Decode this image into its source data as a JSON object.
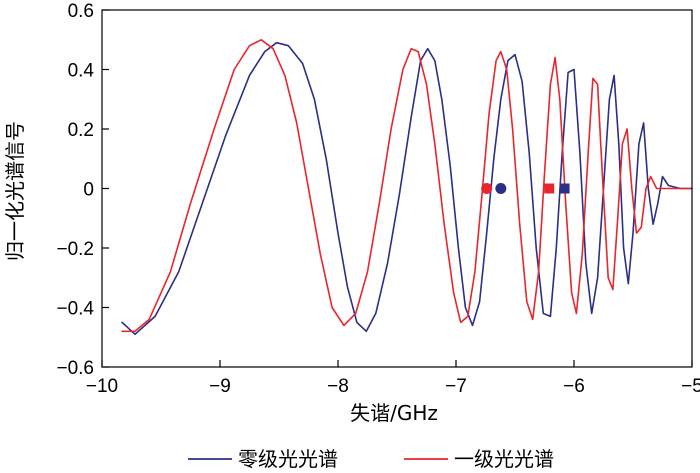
{
  "chart_data": {
    "type": "line",
    "xlabel": "失谐/GHz",
    "ylabel": "归一化光谱信号",
    "xlim": [
      -10,
      -5
    ],
    "ylim": [
      -0.6,
      0.6
    ],
    "x_ticks": [
      -10,
      -9,
      -8,
      -7,
      -6,
      -5
    ],
    "x_tick_labels": [
      "−10",
      "−9",
      "−8",
      "−7",
      "−6",
      "−5"
    ],
    "y_ticks": [
      -0.6,
      -0.4,
      -0.2,
      0,
      0.2,
      0.4,
      0.6
    ],
    "y_tick_labels": [
      "−0.6",
      "−0.4",
      "−0.2",
      "0",
      "0.2",
      "0.4",
      "0.6"
    ],
    "grid": false,
    "legend_position": "bottom",
    "series": [
      {
        "name": "零级光光谱",
        "color": "#2b2f86",
        "points": [
          [
            -9.83,
            -0.45
          ],
          [
            -9.72,
            -0.49
          ],
          [
            -9.55,
            -0.43
          ],
          [
            -9.35,
            -0.28
          ],
          [
            -9.15,
            -0.05
          ],
          [
            -8.95,
            0.18
          ],
          [
            -8.75,
            0.38
          ],
          [
            -8.62,
            0.46
          ],
          [
            -8.52,
            0.49
          ],
          [
            -8.42,
            0.48
          ],
          [
            -8.3,
            0.42
          ],
          [
            -8.2,
            0.3
          ],
          [
            -8.1,
            0.1
          ],
          [
            -8.0,
            -0.15
          ],
          [
            -7.92,
            -0.33
          ],
          [
            -7.84,
            -0.45
          ],
          [
            -7.76,
            -0.48
          ],
          [
            -7.68,
            -0.42
          ],
          [
            -7.58,
            -0.25
          ],
          [
            -7.48,
            -0.02
          ],
          [
            -7.38,
            0.24
          ],
          [
            -7.3,
            0.43
          ],
          [
            -7.24,
            0.47
          ],
          [
            -7.18,
            0.43
          ],
          [
            -7.12,
            0.3
          ],
          [
            -7.05,
            0.08
          ],
          [
            -6.98,
            -0.2
          ],
          [
            -6.92,
            -0.4
          ],
          [
            -6.86,
            -0.46
          ],
          [
            -6.8,
            -0.38
          ],
          [
            -6.74,
            -0.15
          ],
          [
            -6.68,
            0.1
          ],
          [
            -6.62,
            0.3
          ],
          [
            -6.56,
            0.43
          ],
          [
            -6.5,
            0.45
          ],
          [
            -6.44,
            0.36
          ],
          [
            -6.38,
            0.12
          ],
          [
            -6.32,
            -0.2
          ],
          [
            -6.26,
            -0.42
          ],
          [
            -6.2,
            -0.43
          ],
          [
            -6.15,
            -0.2
          ],
          [
            -6.1,
            0.12
          ],
          [
            -6.05,
            0.39
          ],
          [
            -6.0,
            0.4
          ],
          [
            -5.95,
            0.12
          ],
          [
            -5.9,
            -0.25
          ],
          [
            -5.85,
            -0.42
          ],
          [
            -5.8,
            -0.3
          ],
          [
            -5.75,
            0.0
          ],
          [
            -5.7,
            0.3
          ],
          [
            -5.66,
            0.38
          ],
          [
            -5.62,
            0.15
          ],
          [
            -5.58,
            -0.2
          ],
          [
            -5.54,
            -0.32
          ],
          [
            -5.5,
            -0.15
          ],
          [
            -5.45,
            0.15
          ],
          [
            -5.41,
            0.22
          ],
          [
            -5.37,
            0.0
          ],
          [
            -5.33,
            -0.12
          ],
          [
            -5.29,
            -0.05
          ],
          [
            -5.25,
            0.04
          ],
          [
            -5.2,
            0.01
          ],
          [
            -5.1,
            0.0
          ],
          [
            -5.0,
            0.0
          ]
        ]
      },
      {
        "name": "一级光光谱",
        "color": "#e8262d",
        "points": [
          [
            -9.83,
            -0.48
          ],
          [
            -9.72,
            -0.48
          ],
          [
            -9.6,
            -0.44
          ],
          [
            -9.42,
            -0.28
          ],
          [
            -9.25,
            -0.05
          ],
          [
            -9.05,
            0.2
          ],
          [
            -8.88,
            0.4
          ],
          [
            -8.75,
            0.48
          ],
          [
            -8.65,
            0.5
          ],
          [
            -8.55,
            0.47
          ],
          [
            -8.45,
            0.38
          ],
          [
            -8.35,
            0.22
          ],
          [
            -8.25,
            0.0
          ],
          [
            -8.15,
            -0.22
          ],
          [
            -8.05,
            -0.4
          ],
          [
            -7.95,
            -0.46
          ],
          [
            -7.85,
            -0.42
          ],
          [
            -7.75,
            -0.28
          ],
          [
            -7.65,
            -0.05
          ],
          [
            -7.55,
            0.2
          ],
          [
            -7.45,
            0.4
          ],
          [
            -7.38,
            0.47
          ],
          [
            -7.32,
            0.46
          ],
          [
            -7.25,
            0.35
          ],
          [
            -7.18,
            0.15
          ],
          [
            -7.1,
            -0.12
          ],
          [
            -7.02,
            -0.35
          ],
          [
            -6.96,
            -0.45
          ],
          [
            -6.9,
            -0.43
          ],
          [
            -6.84,
            -0.28
          ],
          [
            -6.78,
            -0.02
          ],
          [
            -6.72,
            0.25
          ],
          [
            -6.66,
            0.43
          ],
          [
            -6.62,
            0.46
          ],
          [
            -6.57,
            0.4
          ],
          [
            -6.52,
            0.2
          ],
          [
            -6.46,
            -0.12
          ],
          [
            -6.4,
            -0.38
          ],
          [
            -6.35,
            -0.44
          ],
          [
            -6.3,
            -0.28
          ],
          [
            -6.25,
            0.05
          ],
          [
            -6.2,
            0.35
          ],
          [
            -6.16,
            0.44
          ],
          [
            -6.12,
            0.3
          ],
          [
            -6.07,
            -0.05
          ],
          [
            -6.02,
            -0.35
          ],
          [
            -5.98,
            -0.42
          ],
          [
            -5.93,
            -0.22
          ],
          [
            -5.88,
            0.12
          ],
          [
            -5.84,
            0.37
          ],
          [
            -5.8,
            0.35
          ],
          [
            -5.76,
            0.05
          ],
          [
            -5.71,
            -0.3
          ],
          [
            -5.67,
            -0.34
          ],
          [
            -5.63,
            -0.1
          ],
          [
            -5.59,
            0.15
          ],
          [
            -5.55,
            0.2
          ],
          [
            -5.51,
            0.0
          ],
          [
            -5.47,
            -0.15
          ],
          [
            -5.43,
            -0.13
          ],
          [
            -5.39,
            0.0
          ],
          [
            -5.35,
            0.04
          ],
          [
            -5.3,
            0.0
          ],
          [
            -5.2,
            0.0
          ],
          [
            -5.0,
            0.0
          ]
        ]
      }
    ],
    "markers": [
      {
        "shape": "circle",
        "color": "#e8262d",
        "x": -6.74,
        "y": 0
      },
      {
        "shape": "circle",
        "color": "#2b2f86",
        "x": -6.62,
        "y": 0
      },
      {
        "shape": "square",
        "color": "#e8262d",
        "x": -6.21,
        "y": 0
      },
      {
        "shape": "square",
        "color": "#2b2f86",
        "x": -6.08,
        "y": 0
      }
    ]
  }
}
